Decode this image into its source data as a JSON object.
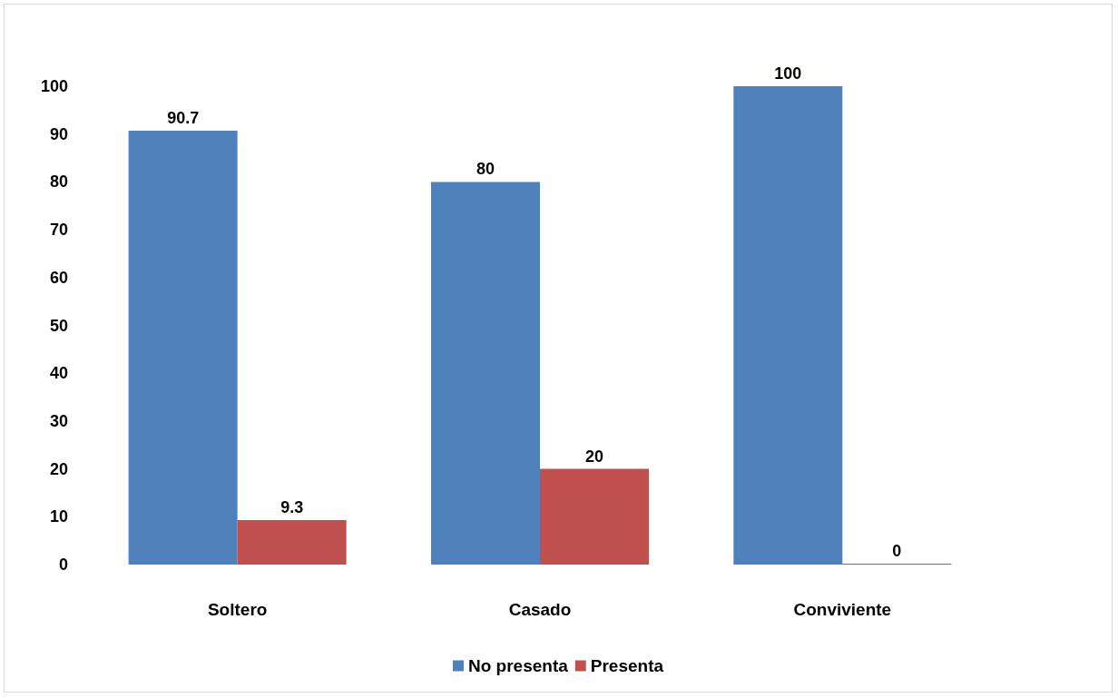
{
  "chart_data": {
    "type": "bar",
    "categories": [
      "Soltero",
      "Casado",
      "Conviviente"
    ],
    "series": [
      {
        "name": "No presenta",
        "color": "#4f81bd",
        "values": [
          90.7,
          80,
          100
        ]
      },
      {
        "name": "Presenta",
        "color": "#c0504d",
        "values": [
          9.3,
          20,
          0
        ]
      }
    ],
    "ylim": [
      0,
      100
    ],
    "yticks": [
      0,
      10,
      20,
      30,
      40,
      50,
      60,
      70,
      80,
      90,
      100
    ],
    "grid": false,
    "legend": "bottom",
    "data_labels": true
  }
}
